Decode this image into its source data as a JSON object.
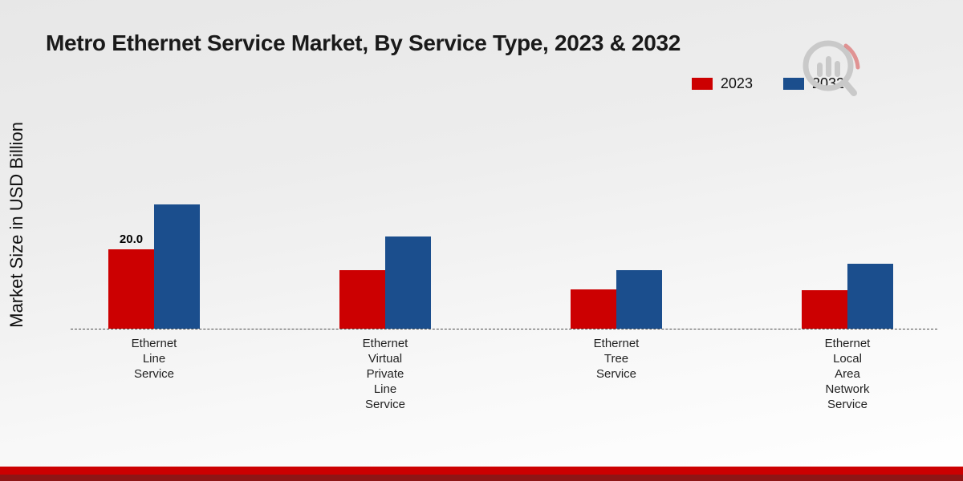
{
  "title": "Metro Ethernet Service Market, By Service Type, 2023 & 2032",
  "y_axis_label": "Market Size in USD Billion",
  "colors": {
    "series_2023": "#cc0001",
    "series_2032": "#1b4e8d",
    "footer_band": "#cc0001",
    "footer_bottom_band": "#8e1515",
    "baseline": "#4a4a4a"
  },
  "chart_data": {
    "type": "bar",
    "title": "Metro Ethernet Service Market, By Service Type, 2023 & 2032",
    "ylabel": "Market Size in USD Billion",
    "xlabel": "",
    "categories": [
      "Ethernet Line Service",
      "Ethernet Virtual Private Line Service",
      "Ethernet Tree Service",
      "Ethernet Local Area Network Service"
    ],
    "series": [
      {
        "name": "2023",
        "color": "#cc0001",
        "values": [
          20.0,
          14.7,
          9.9,
          9.7
        ],
        "labels": [
          "20.0",
          "",
          "",
          ""
        ]
      },
      {
        "name": "2032",
        "color": "#1b4e8d",
        "values": [
          31.3,
          23.2,
          14.7,
          16.4
        ],
        "labels": [
          "",
          "",
          "",
          ""
        ]
      }
    ],
    "annotations": [
      {
        "category": "Ethernet Line Service",
        "series": "2023",
        "text": "20.0"
      }
    ],
    "ylim": [
      0,
      35
    ],
    "grid": false,
    "legend_position": "top-right",
    "baseline_style": "dashed"
  },
  "branding": {
    "logo": "magnifier-bar-chart-logo"
  }
}
